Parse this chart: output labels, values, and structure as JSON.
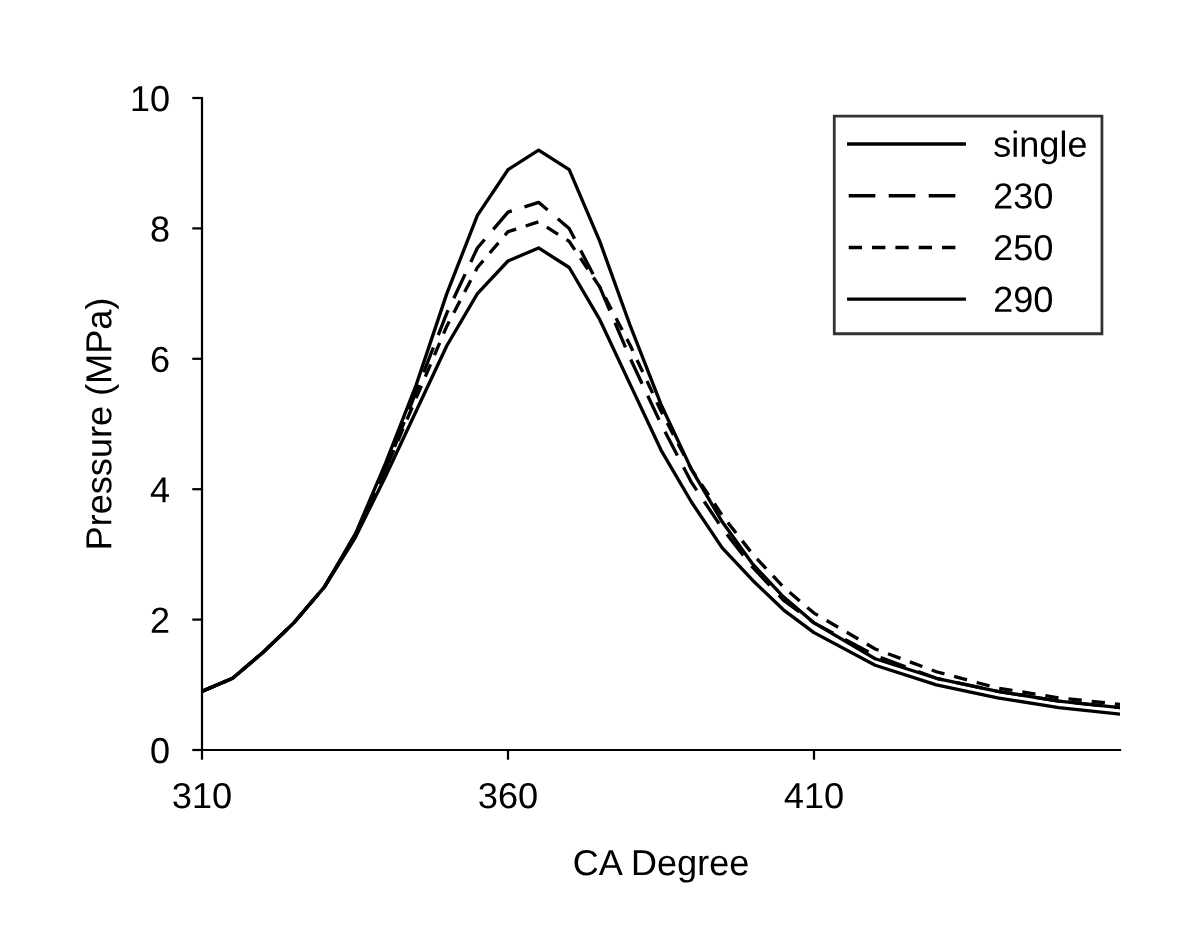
{
  "chart_data": {
    "type": "line",
    "xlabel": "CA Degree",
    "ylabel": "Pressure (MPa)",
    "xlim": [
      310,
      460
    ],
    "ylim": [
      0,
      10
    ],
    "xticks": [
      310,
      360,
      410
    ],
    "yticks": [
      0,
      2,
      4,
      6,
      8,
      10
    ],
    "grid": false,
    "legend": "top right",
    "marker": "none",
    "x": [
      310,
      315,
      320,
      325,
      330,
      335,
      340,
      345,
      350,
      355,
      360,
      365,
      370,
      375,
      380,
      385,
      390,
      395,
      400,
      405,
      410,
      420,
      430,
      440,
      450,
      460
    ],
    "series": [
      {
        "name": "single",
        "color": "#000000",
        "line_style": "solid",
        "values": [
          0.9,
          1.1,
          1.5,
          1.95,
          2.5,
          3.25,
          4.2,
          5.2,
          6.2,
          7.0,
          7.5,
          7.7,
          7.4,
          6.6,
          5.6,
          4.6,
          3.8,
          3.1,
          2.6,
          2.15,
          1.8,
          1.3,
          1.0,
          0.8,
          0.65,
          0.55
        ]
      },
      {
        "name": "230",
        "color": "#000000",
        "line_style": "dashed",
        "values": [
          0.9,
          1.1,
          1.5,
          1.95,
          2.5,
          3.3,
          4.3,
          5.5,
          6.7,
          7.7,
          8.25,
          8.4,
          8.0,
          7.1,
          6.0,
          5.0,
          4.1,
          3.4,
          2.8,
          2.3,
          1.95,
          1.45,
          1.1,
          0.9,
          0.75,
          0.65
        ]
      },
      {
        "name": "250",
        "color": "#000000",
        "line_style": "dotted",
        "values": [
          0.9,
          1.1,
          1.5,
          1.95,
          2.5,
          3.3,
          4.3,
          5.4,
          6.5,
          7.4,
          7.95,
          8.1,
          7.8,
          7.1,
          6.2,
          5.2,
          4.3,
          3.6,
          3.0,
          2.5,
          2.1,
          1.55,
          1.2,
          0.95,
          0.8,
          0.7
        ]
      },
      {
        "name": "290",
        "color": "#000000",
        "line_style": "solid",
        "values": [
          0.9,
          1.1,
          1.5,
          1.95,
          2.5,
          3.3,
          4.4,
          5.6,
          7.0,
          8.2,
          8.9,
          9.2,
          8.9,
          7.8,
          6.5,
          5.3,
          4.3,
          3.5,
          2.85,
          2.35,
          1.95,
          1.4,
          1.1,
          0.9,
          0.75,
          0.65
        ]
      }
    ]
  }
}
